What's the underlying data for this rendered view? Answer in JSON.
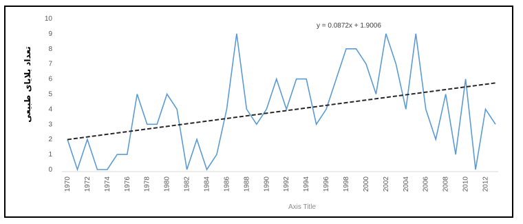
{
  "chart_data": {
    "type": "line",
    "ylabel": "تعداد بلایای طبیعی",
    "xlabel": "Axis Title",
    "trendline_equation": "y = 0.0872x + 1.9006",
    "trendline": {
      "slope": 0.0872,
      "intercept": 1.9006,
      "style": "dashed"
    },
    "ylim": [
      0,
      10
    ],
    "yticks": [
      "0",
      "1",
      "2",
      "3",
      "4",
      "5",
      "6",
      "7",
      "8",
      "9",
      "10"
    ],
    "xticks": [
      "1970",
      "1972",
      "1974",
      "1976",
      "1978",
      "1980",
      "1982",
      "1984",
      "1986",
      "1988",
      "1990",
      "1992",
      "1994",
      "1996",
      "1998",
      "2000",
      "2002",
      "2004",
      "2006",
      "2008",
      "2010",
      "2012"
    ],
    "grid": false,
    "legend": "none",
    "colors": {
      "series": "#5b9bd5",
      "trend": "#262626",
      "axis": "#d9d9d9"
    },
    "series": [
      {
        "x": [
          1970,
          1971,
          1972,
          1973,
          1974,
          1975,
          1976,
          1977,
          1978,
          1979,
          1980,
          1981,
          1982,
          1983,
          1984,
          1985,
          1986,
          1987,
          1988,
          1989,
          1990,
          1991,
          1992,
          1993,
          1994,
          1995,
          1996,
          1997,
          1998,
          1999,
          2000,
          2001,
          2002,
          2003,
          2004,
          2005,
          2006,
          2007,
          2008,
          2009,
          2010,
          2011,
          2012,
          2013
        ],
        "values": [
          2,
          0,
          2,
          0,
          0,
          1,
          1,
          5,
          3,
          3,
          5,
          4,
          0,
          2,
          0,
          1,
          4,
          9,
          4,
          3,
          4,
          6,
          4,
          6,
          6,
          3,
          4,
          6,
          8,
          8,
          7,
          5,
          9,
          7,
          4,
          9,
          4,
          2,
          5,
          1,
          6,
          0,
          4,
          3
        ]
      }
    ]
  }
}
